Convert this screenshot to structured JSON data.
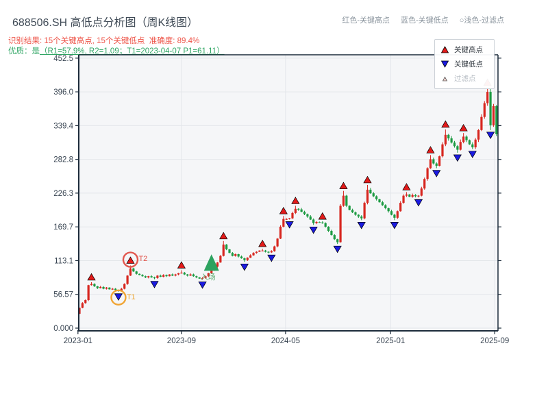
{
  "header": {
    "title": "688506.SH 高低点分析图（周K线图）",
    "result_line": "识别结果: 15个关键高点, 15个关键低点  准确度: 89.4%",
    "quality_prefix": "优质：是",
    "quality_detail": "（R1=57.9%, R2=1.09；T1=2023-04-07 P1=61.11）",
    "notes": {
      "high": "红色-关键高点",
      "low": "蓝色-关键低点",
      "filter": "○浅色-过滤点"
    }
  },
  "legend": {
    "high_label": "关键高点",
    "low_label": "关键低点",
    "filter_label": "过滤点"
  },
  "annotations": {
    "t1": {
      "label": "T1",
      "week": 13,
      "price": 61.11
    },
    "t2": {
      "label": "T2",
      "week": 17,
      "price": 105
    },
    "entry": {
      "label": "入场",
      "week": 44,
      "price": 110
    }
  },
  "chart_data": {
    "type": "candlestick",
    "timeframe": "weekly",
    "start_date": "2023-01-06",
    "x_ticks": [
      {
        "label": "2023-01",
        "week": -0.5
      },
      {
        "label": "2023-09",
        "week": 34
      },
      {
        "label": "2024-05",
        "week": 68.7
      },
      {
        "label": "2025-01",
        "week": 103.7
      },
      {
        "label": "2025-09",
        "week": 138.4
      }
    ],
    "y_ticks": [
      {
        "label": "0.000",
        "value": 0
      },
      {
        "label": "56.57",
        "value": 56.57
      },
      {
        "label": "113.1",
        "value": 113.1
      },
      {
        "label": "169.7",
        "value": 169.7
      },
      {
        "label": "226.3",
        "value": 226.3
      },
      {
        "label": "282.8",
        "value": 282.8
      },
      {
        "label": "339.4",
        "value": 339.4
      },
      {
        "label": "396.0",
        "value": 396.0
      },
      {
        "label": "452.5",
        "value": 452.5
      }
    ],
    "y_max": 452.5,
    "open_first": 24,
    "closes": [
      34,
      42,
      47,
      72,
      74,
      70,
      67,
      69,
      66,
      68,
      65,
      66,
      64,
      62,
      66,
      74,
      88,
      100,
      95,
      91,
      89,
      87,
      85,
      87,
      85,
      84,
      88,
      86,
      89,
      87,
      90,
      88,
      90,
      92,
      93,
      90,
      88,
      90,
      87,
      85,
      83,
      84,
      87,
      92,
      97,
      103,
      110,
      121,
      140,
      132,
      126,
      121,
      124,
      120,
      117,
      114,
      118,
      122,
      126,
      128,
      130,
      130,
      128,
      127,
      129,
      137,
      150,
      170,
      183,
      183,
      184,
      193,
      200,
      199,
      195,
      191,
      187,
      182,
      176,
      178,
      177,
      176,
      170,
      163,
      156,
      149,
      144,
      205,
      222,
      205,
      198,
      194,
      190,
      187,
      184,
      210,
      232,
      226,
      221,
      216,
      211,
      206,
      201,
      196,
      190,
      185,
      196,
      210,
      222,
      224,
      220,
      223,
      221,
      222,
      234,
      250,
      268,
      283,
      276,
      272,
      288,
      308,
      324,
      318,
      311,
      305,
      299,
      312,
      321,
      315,
      308,
      303,
      316,
      332,
      354,
      377,
      396,
      340,
      372,
      325
    ],
    "high_markers": [
      {
        "week": 4,
        "price": 77
      },
      {
        "week": 17,
        "price": 105
      },
      {
        "week": 34,
        "price": 97
      },
      {
        "week": 48,
        "price": 146
      },
      {
        "week": 61,
        "price": 133
      },
      {
        "week": 68,
        "price": 188
      },
      {
        "week": 72,
        "price": 205
      },
      {
        "week": 81,
        "price": 179
      },
      {
        "week": 88,
        "price": 230
      },
      {
        "week": 96,
        "price": 240
      },
      {
        "week": 109,
        "price": 228
      },
      {
        "week": 117,
        "price": 290
      },
      {
        "week": 122,
        "price": 333
      },
      {
        "week": 128,
        "price": 327
      },
      {
        "week": 136,
        "price": 403
      }
    ],
    "low_markers": [
      {
        "week": 13,
        "price": 61.11
      },
      {
        "week": 25,
        "price": 82
      },
      {
        "week": 41,
        "price": 81
      },
      {
        "week": 55,
        "price": 111
      },
      {
        "week": 64,
        "price": 126
      },
      {
        "week": 70,
        "price": 182
      },
      {
        "week": 78,
        "price": 173
      },
      {
        "week": 86,
        "price": 141
      },
      {
        "week": 94,
        "price": 181
      },
      {
        "week": 105,
        "price": 181
      },
      {
        "week": 113,
        "price": 219
      },
      {
        "week": 119,
        "price": 268
      },
      {
        "week": 126,
        "price": 294
      },
      {
        "week": 131,
        "price": 300
      },
      {
        "week": 137,
        "price": 332
      }
    ],
    "colors": {
      "up": "#d7261f",
      "down": "#1b9a41",
      "high_marker": "#e31a1a",
      "low_marker": "#1a1ae0",
      "marker_edge": "#000000",
      "entry": "#2ca25f",
      "t1_circle": "#f0a432",
      "t2_circle": "#e2574e",
      "filtered": "#f6d7d2",
      "plot_bg": "#f5f6f8",
      "grid": "#e3e6ea",
      "spine": "#1c2b3a",
      "tick_text": "#3a4653"
    }
  }
}
